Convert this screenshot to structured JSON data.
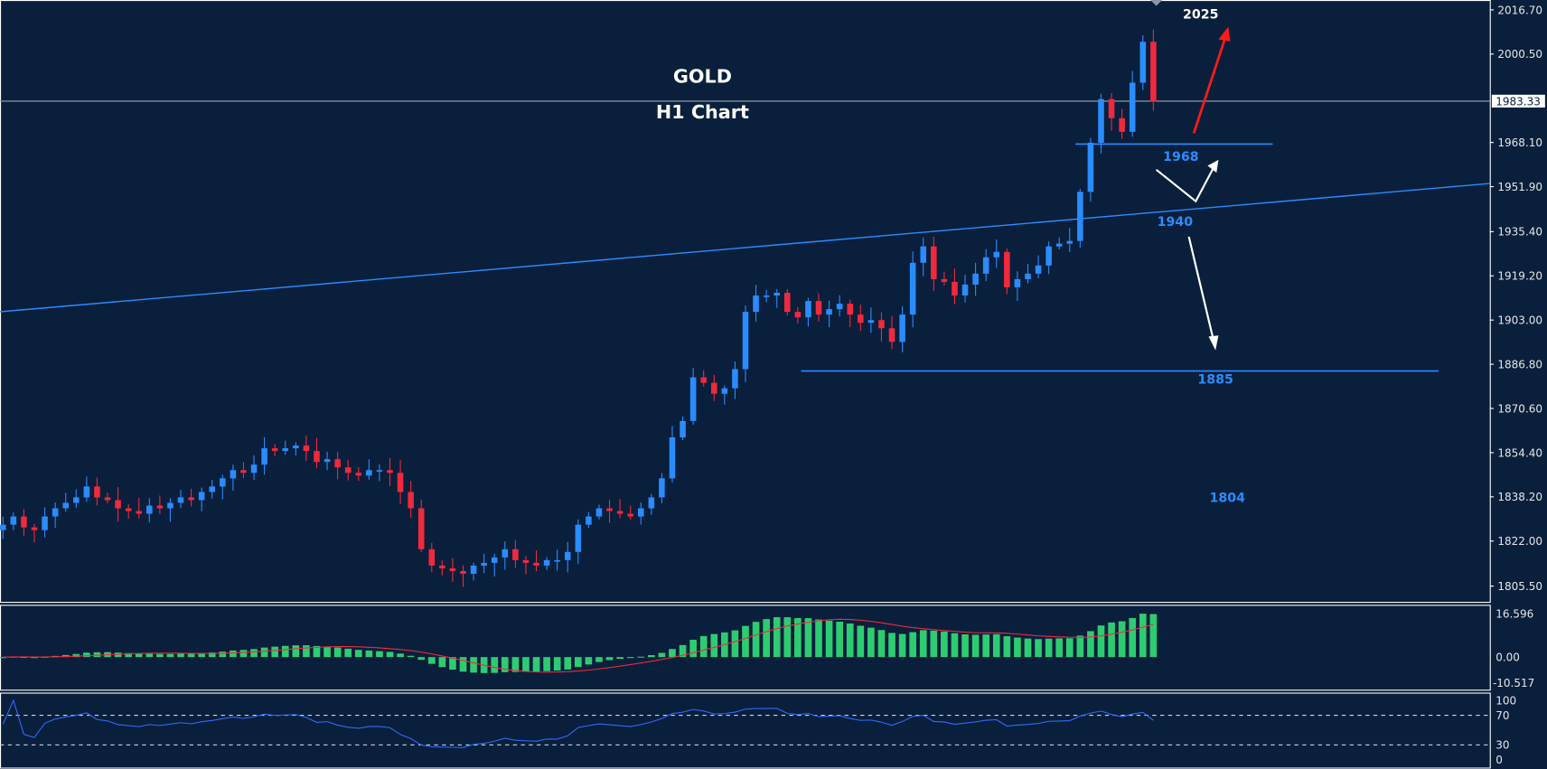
{
  "chart_data": {
    "type": "candlestick",
    "title": "GOLD",
    "subtitle": "H1 Chart",
    "symbol": "GOLD",
    "timeframe": "H1",
    "price_ticks": [
      "2016.70",
      "2000.50",
      "1968.10",
      "1951.90",
      "1935.40",
      "1919.20",
      "1903.00",
      "1886.80",
      "1870.60",
      "1854.40",
      "1838.20",
      "1822.00",
      "1805.50"
    ],
    "ylim": [
      1805.5,
      2016.7
    ],
    "current_price": "1983.33",
    "closes": [
      1828,
      1831,
      1827,
      1826,
      1831,
      1834,
      1836,
      1838,
      1842,
      1838,
      1837,
      1834,
      1833,
      1832,
      1835,
      1834,
      1836,
      1838,
      1837,
      1840,
      1842,
      1845,
      1848,
      1847,
      1850,
      1856,
      1855,
      1856,
      1857,
      1855,
      1851,
      1852,
      1849,
      1847,
      1846,
      1848,
      1848,
      1847,
      1840,
      1834,
      1819,
      1813,
      1812,
      1811,
      1810,
      1813,
      1814,
      1816,
      1819,
      1815,
      1814,
      1813,
      1815,
      1815,
      1818,
      1828,
      1831,
      1834,
      1833,
      1832,
      1831,
      1834,
      1838,
      1845,
      1860,
      1866,
      1882,
      1880,
      1876,
      1878,
      1885,
      1906,
      1912,
      1912,
      1913,
      1906,
      1904,
      1910,
      1905,
      1907,
      1909,
      1905,
      1902,
      1903,
      1900,
      1895,
      1905,
      1924,
      1930,
      1918,
      1917,
      1912,
      1916,
      1920,
      1926,
      1928,
      1915,
      1918,
      1920,
      1923,
      1930,
      1931,
      1932,
      1950,
      1968,
      1984,
      1977,
      1972,
      1990,
      2005,
      1983
    ],
    "annotations": {
      "target": "2025",
      "resistance": "1968",
      "trendline": "1940",
      "support": "1885",
      "lower": "1804"
    },
    "levels": {
      "resistance": 1968,
      "support": 1885
    },
    "colors": {
      "background": "#0a1f3c",
      "bull": "#2a8cff",
      "bear": "#f02a3c",
      "level": "#2a8cff",
      "macd_hist": "#2ecc71",
      "macd_signal": "#f02a3c",
      "rsi": "#2f6bff",
      "arrow_up": "#ff1a1a",
      "arrow": "#ffffff"
    },
    "macd": {
      "ticks": [
        "16.596",
        "0.00",
        "-10.517"
      ],
      "max": 16.596,
      "min": -10.517
    },
    "rsi": {
      "ticks": [
        "100",
        "70",
        "30",
        "0"
      ],
      "levels": [
        70,
        30
      ]
    }
  }
}
